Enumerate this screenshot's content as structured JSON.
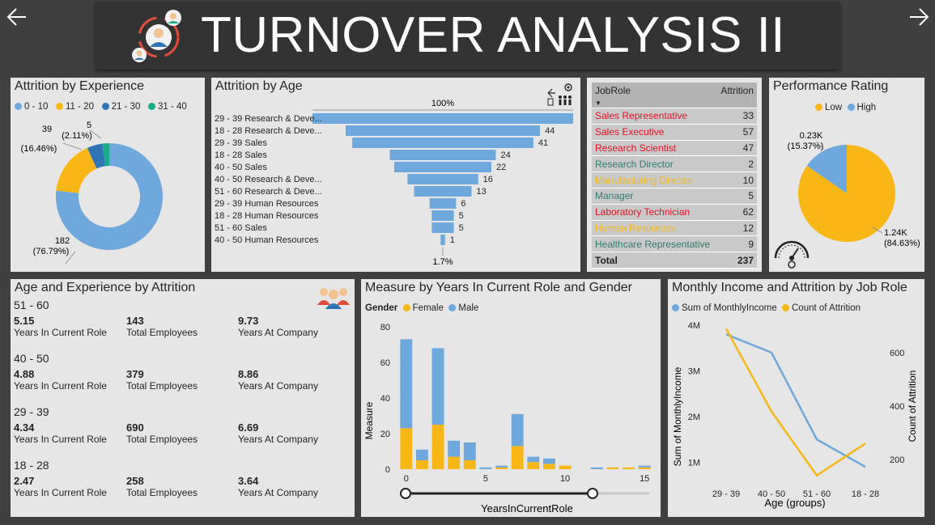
{
  "header": {
    "title": "TURNOVER ANALYSIS II"
  },
  "colors": {
    "blue": "#6fa8dc",
    "yellow": "#f9b715",
    "darkblue": "#2e75b6",
    "teal": "#1aab8b"
  },
  "experience": {
    "title": "Attrition by Experience",
    "legend": [
      "0 - 10",
      "11 - 20",
      "21 - 30",
      "31 - 40"
    ],
    "labels": {
      "v182": "182",
      "p182": "(76.79%)",
      "v39": "39",
      "p39": "(16.46%)",
      "v5": "5",
      "p5": "(2.11%)"
    },
    "chart_data": {
      "type": "pie",
      "categories": [
        "0 - 10",
        "11 - 20",
        "21 - 30",
        "31 - 40"
      ],
      "values": [
        182,
        39,
        11,
        5
      ]
    }
  },
  "age": {
    "title": "Attrition by Age",
    "top_pct": "100%",
    "bottom_pct": "1.7%",
    "chart_data": {
      "type": "bar",
      "categories": [
        "29 - 39 Research & Deve...",
        "18 - 28 Research & Deve...",
        "29 - 39 Sales",
        "18 - 28 Sales",
        "40 - 50 Sales",
        "40 - 50 Research & Deve...",
        "51 - 60 Research & Deve...",
        "29 - 39 Human Resources",
        "18 - 28 Human Resources",
        "51 - 60 Sales",
        "40 - 50 Human Resources"
      ],
      "values": [
        59,
        44,
        41,
        24,
        22,
        16,
        13,
        6,
        5,
        5,
        1
      ],
      "value_labels": [
        "",
        "44",
        "41",
        "24",
        "22",
        "16",
        "13",
        "6",
        "5",
        "5",
        "1"
      ]
    }
  },
  "jobrole": {
    "headers": [
      "JobRole",
      "Attrition"
    ],
    "rows": [
      {
        "role": "Sales Representative",
        "value": "33",
        "color": "#e81123"
      },
      {
        "role": "Sales Executive",
        "value": "57",
        "color": "#e81123"
      },
      {
        "role": "Research Scientist",
        "value": "47",
        "color": "#e81123"
      },
      {
        "role": "Research Director",
        "value": "2",
        "color": "#2f7d6d"
      },
      {
        "role": "Manufacturing Director",
        "value": "10",
        "color": "#f9b715"
      },
      {
        "role": "Manager",
        "value": "5",
        "color": "#2f7d6d"
      },
      {
        "role": "Laboratory Technician",
        "value": "62",
        "color": "#e81123"
      },
      {
        "role": "Human Resources",
        "value": "12",
        "color": "#f9b715"
      },
      {
        "role": "Healthcare Representative",
        "value": "9",
        "color": "#2f7d6d"
      }
    ],
    "total_label": "Total",
    "total_value": "237"
  },
  "performance": {
    "title": "Performance Rating",
    "legend": [
      "Low",
      "High"
    ],
    "labels": {
      "high_v": "0.23K",
      "high_p": "(15.37%)",
      "low_v": "1.24K",
      "low_p": "(84.63%)"
    },
    "chart_data": {
      "type": "pie",
      "categories": [
        "Low",
        "High"
      ],
      "values": [
        84.63,
        15.37
      ]
    }
  },
  "agexp": {
    "title": "Age and Experience by Attrition",
    "groups": [
      {
        "range": "51 - 60",
        "years_role": "5.15",
        "years_role_label": "Years In Current Role",
        "employees": "143",
        "employees_label": "Total Employees",
        "years_company": "9.73",
        "years_company_label": "Years At Company"
      },
      {
        "range": "40 - 50",
        "years_role": "4.88",
        "years_role_label": "Years In Current Role",
        "employees": "379",
        "employees_label": "Total Employees",
        "years_company": "8.86",
        "years_company_label": "Years At Company"
      },
      {
        "range": "29 - 39",
        "years_role": "4.34",
        "years_role_label": "Years In Current Role",
        "employees": "690",
        "employees_label": "Total Employees",
        "years_company": "6.69",
        "years_company_label": "Years At Company"
      },
      {
        "range": "18 - 28",
        "years_role": "2.47",
        "years_role_label": "Years In Current Role",
        "employees": "258",
        "employees_label": "Total Employees",
        "years_company": "3.64",
        "years_company_label": "Years At Company"
      }
    ]
  },
  "measure": {
    "title": "Measure by Years In Current Role and Gender",
    "legend_title": "Gender",
    "legend": [
      "Female",
      "Male"
    ],
    "xlabel": "YearsInCurrentRole",
    "ylabel": "Measure",
    "chart_data": {
      "type": "bar",
      "x": [
        0,
        1,
        2,
        3,
        4,
        5,
        6,
        7,
        8,
        9,
        10,
        11,
        12,
        13,
        14,
        15
      ],
      "ylim": [
        0,
        80
      ],
      "yticks": [
        "0",
        "20",
        "40",
        "60",
        "80"
      ],
      "xticks": [
        "0",
        "5",
        "10",
        "15"
      ],
      "series": [
        {
          "name": "Female",
          "values": [
            23,
            5,
            25,
            7,
            5,
            0,
            1,
            13,
            4,
            3,
            2,
            0,
            0,
            1,
            1,
            1
          ]
        },
        {
          "name": "Male",
          "values": [
            50,
            6,
            43,
            9,
            10,
            1,
            1,
            18,
            3,
            3,
            0,
            0,
            1,
            0,
            0,
            1
          ]
        }
      ]
    }
  },
  "income": {
    "title": "Monthly Income and Attrition by Job Role",
    "legend": [
      "Sum of MonthlyIncome",
      "Count of Attrition"
    ],
    "xlabel": "Age (groups)",
    "ylabel_left": "Sum of MonthlyIncome",
    "ylabel_right": "Count of Attrition",
    "left_ticks": [
      "4M",
      "3M",
      "2M",
      "1M"
    ],
    "right_ticks": [
      "600",
      "400",
      "200"
    ],
    "chart_data": {
      "type": "line",
      "categories": [
        "29 - 39",
        "40 - 50",
        "51 - 60",
        "18 - 28"
      ],
      "series": [
        {
          "name": "Sum of MonthlyIncome",
          "values": [
            3800000,
            3400000,
            1500000,
            900000
          ]
        },
        {
          "name": "Count of Attrition",
          "values": [
            690,
            380,
            140,
            260
          ]
        }
      ]
    }
  }
}
